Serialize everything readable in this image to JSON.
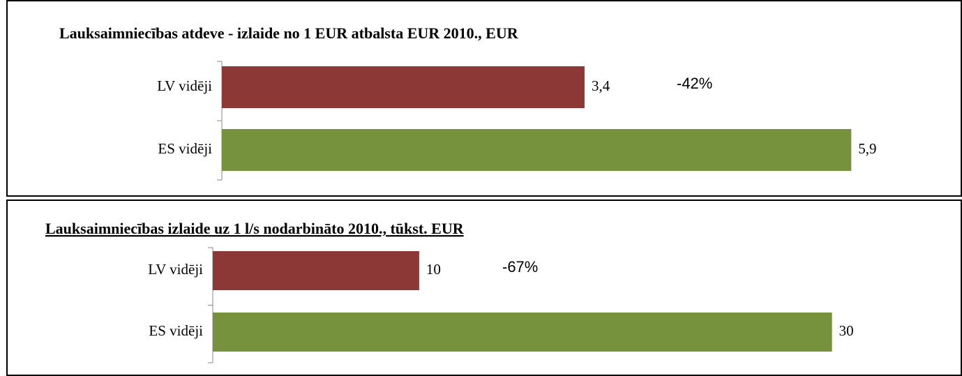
{
  "chart_data": [
    {
      "type": "bar",
      "orientation": "horizontal",
      "title": "Lauksaimniecības atdeve - izlaide no 1 EUR atbalsta EUR 2010., EUR",
      "categories": [
        "LV vidēji",
        "ES vidēji"
      ],
      "values": [
        3.4,
        5.9
      ],
      "value_labels": [
        "3,4",
        "5,9"
      ],
      "colors": [
        "#8c3836",
        "#76923c"
      ],
      "annotation": "-42%",
      "xlim": [
        0,
        6.5
      ]
    },
    {
      "type": "bar",
      "orientation": "horizontal",
      "title": "Lauksaimniecības izlaide uz 1 l/s nodarbināto 2010., tūkst. EUR",
      "categories": [
        "LV vidēji",
        "ES vidēji"
      ],
      "values": [
        10,
        30
      ],
      "colors": [
        "#8c3836",
        "#76923c"
      ],
      "annotation": "-67%",
      "xlim": [
        0,
        34
      ]
    }
  ]
}
